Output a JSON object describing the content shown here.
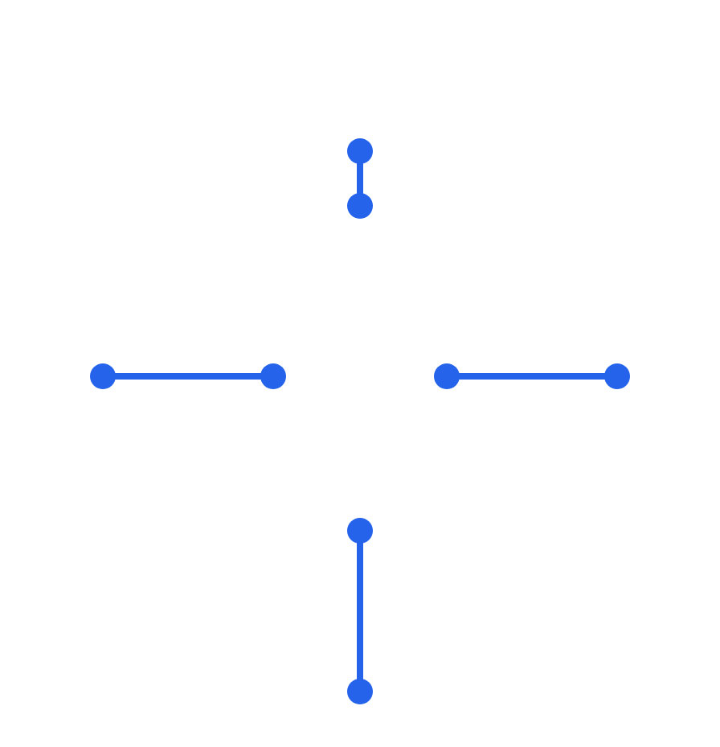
{
  "colors": {
    "background": "#ffffff",
    "accent": "#2563eb"
  },
  "segments": [
    {
      "id": "top",
      "orientation": "vertical"
    },
    {
      "id": "left",
      "orientation": "horizontal"
    },
    {
      "id": "right",
      "orientation": "horizontal"
    },
    {
      "id": "bottom",
      "orientation": "vertical"
    }
  ]
}
